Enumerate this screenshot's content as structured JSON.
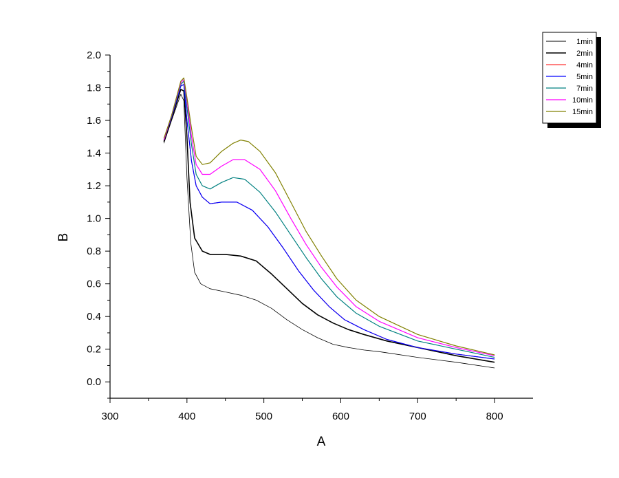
{
  "chart_data": {
    "type": "line",
    "title": "",
    "xlabel": "A",
    "ylabel": "B",
    "xlim": [
      300,
      850
    ],
    "ylim": [
      -0.1,
      2.0
    ],
    "x_ticks": [
      300,
      400,
      500,
      600,
      700,
      800
    ],
    "y_ticks": [
      0.0,
      0.2,
      0.4,
      0.6,
      0.8,
      1.0,
      1.2,
      1.4,
      1.6,
      1.8,
      2.0
    ],
    "x_tick_labels": [
      "300",
      "400",
      "500",
      "600",
      "700",
      "800"
    ],
    "y_tick_labels": [
      "0.0",
      "0.2",
      "0.4",
      "0.6",
      "0.8",
      "1.0",
      "1.2",
      "1.4",
      "1.6",
      "1.8",
      "2.0"
    ],
    "grid": false,
    "legend_position": "top-right",
    "series": [
      {
        "name": "1min",
        "color": "#000000",
        "width": 0.8,
        "points": [
          [
            370,
            1.46
          ],
          [
            380,
            1.6
          ],
          [
            392,
            1.76
          ],
          [
            396,
            1.72
          ],
          [
            400,
            1.25
          ],
          [
            405,
            0.85
          ],
          [
            410,
            0.67
          ],
          [
            418,
            0.6
          ],
          [
            430,
            0.57
          ],
          [
            450,
            0.55
          ],
          [
            470,
            0.53
          ],
          [
            490,
            0.5
          ],
          [
            510,
            0.45
          ],
          [
            530,
            0.38
          ],
          [
            550,
            0.32
          ],
          [
            570,
            0.27
          ],
          [
            590,
            0.23
          ],
          [
            610,
            0.21
          ],
          [
            630,
            0.195
          ],
          [
            650,
            0.185
          ],
          [
            700,
            0.15
          ],
          [
            750,
            0.12
          ],
          [
            800,
            0.085
          ]
        ]
      },
      {
        "name": "2min",
        "color": "#000000",
        "width": 1.6,
        "points": [
          [
            370,
            1.47
          ],
          [
            380,
            1.61
          ],
          [
            392,
            1.79
          ],
          [
            396,
            1.78
          ],
          [
            400,
            1.5
          ],
          [
            404,
            1.1
          ],
          [
            410,
            0.88
          ],
          [
            420,
            0.8
          ],
          [
            430,
            0.78
          ],
          [
            450,
            0.78
          ],
          [
            470,
            0.77
          ],
          [
            490,
            0.74
          ],
          [
            510,
            0.66
          ],
          [
            530,
            0.57
          ],
          [
            550,
            0.48
          ],
          [
            570,
            0.41
          ],
          [
            590,
            0.36
          ],
          [
            610,
            0.32
          ],
          [
            630,
            0.29
          ],
          [
            660,
            0.25
          ],
          [
            700,
            0.21
          ],
          [
            750,
            0.16
          ],
          [
            800,
            0.12
          ]
        ]
      },
      {
        "name": "4min",
        "color": "#ff0000",
        "width": 1.0,
        "points": [
          [
            370,
            1.48
          ],
          [
            380,
            1.62
          ],
          [
            392,
            1.81
          ],
          [
            396,
            1.82
          ],
          [
            400,
            1.6
          ],
          [
            406,
            1.35
          ],
          [
            412,
            1.2
          ],
          [
            420,
            1.13
          ],
          [
            430,
            1.09
          ],
          [
            445,
            1.1
          ],
          [
            465,
            1.1
          ],
          [
            485,
            1.05
          ],
          [
            505,
            0.95
          ],
          [
            525,
            0.82
          ],
          [
            545,
            0.68
          ],
          [
            565,
            0.56
          ],
          [
            585,
            0.46
          ],
          [
            605,
            0.38
          ],
          [
            630,
            0.32
          ],
          [
            660,
            0.26
          ],
          [
            700,
            0.21
          ],
          [
            750,
            0.17
          ],
          [
            800,
            0.14
          ]
        ]
      },
      {
        "name": "5min",
        "color": "#0000ff",
        "width": 1.2,
        "points": [
          [
            370,
            1.48
          ],
          [
            380,
            1.62
          ],
          [
            392,
            1.81
          ],
          [
            396,
            1.82
          ],
          [
            400,
            1.6
          ],
          [
            406,
            1.35
          ],
          [
            412,
            1.2
          ],
          [
            420,
            1.13
          ],
          [
            430,
            1.09
          ],
          [
            445,
            1.1
          ],
          [
            465,
            1.1
          ],
          [
            485,
            1.05
          ],
          [
            505,
            0.95
          ],
          [
            525,
            0.82
          ],
          [
            545,
            0.68
          ],
          [
            565,
            0.56
          ],
          [
            585,
            0.46
          ],
          [
            605,
            0.38
          ],
          [
            630,
            0.32
          ],
          [
            660,
            0.26
          ],
          [
            700,
            0.21
          ],
          [
            750,
            0.17
          ],
          [
            800,
            0.14
          ]
        ]
      },
      {
        "name": "7min",
        "color": "#008080",
        "width": 1.2,
        "points": [
          [
            370,
            1.48
          ],
          [
            380,
            1.63
          ],
          [
            392,
            1.82
          ],
          [
            396,
            1.84
          ],
          [
            400,
            1.68
          ],
          [
            406,
            1.45
          ],
          [
            412,
            1.27
          ],
          [
            420,
            1.2
          ],
          [
            430,
            1.18
          ],
          [
            445,
            1.22
          ],
          [
            460,
            1.25
          ],
          [
            475,
            1.24
          ],
          [
            495,
            1.16
          ],
          [
            515,
            1.04
          ],
          [
            535,
            0.9
          ],
          [
            555,
            0.76
          ],
          [
            575,
            0.63
          ],
          [
            595,
            0.52
          ],
          [
            620,
            0.42
          ],
          [
            650,
            0.34
          ],
          [
            700,
            0.25
          ],
          [
            750,
            0.2
          ],
          [
            800,
            0.15
          ]
        ]
      },
      {
        "name": "10min",
        "color": "#ff00ff",
        "width": 1.2,
        "points": [
          [
            370,
            1.48
          ],
          [
            380,
            1.63
          ],
          [
            392,
            1.83
          ],
          [
            396,
            1.85
          ],
          [
            400,
            1.72
          ],
          [
            406,
            1.5
          ],
          [
            412,
            1.33
          ],
          [
            420,
            1.27
          ],
          [
            430,
            1.27
          ],
          [
            445,
            1.32
          ],
          [
            460,
            1.36
          ],
          [
            475,
            1.36
          ],
          [
            495,
            1.3
          ],
          [
            515,
            1.17
          ],
          [
            535,
            1.0
          ],
          [
            555,
            0.84
          ],
          [
            575,
            0.7
          ],
          [
            595,
            0.58
          ],
          [
            620,
            0.46
          ],
          [
            650,
            0.37
          ],
          [
            700,
            0.27
          ],
          [
            750,
            0.21
          ],
          [
            800,
            0.16
          ]
        ]
      },
      {
        "name": "15min",
        "color": "#808000",
        "width": 1.2,
        "points": [
          [
            370,
            1.49
          ],
          [
            380,
            1.63
          ],
          [
            392,
            1.84
          ],
          [
            396,
            1.86
          ],
          [
            400,
            1.74
          ],
          [
            406,
            1.55
          ],
          [
            412,
            1.38
          ],
          [
            420,
            1.33
          ],
          [
            430,
            1.34
          ],
          [
            445,
            1.41
          ],
          [
            460,
            1.46
          ],
          [
            470,
            1.48
          ],
          [
            480,
            1.47
          ],
          [
            495,
            1.41
          ],
          [
            515,
            1.28
          ],
          [
            535,
            1.1
          ],
          [
            555,
            0.92
          ],
          [
            575,
            0.77
          ],
          [
            595,
            0.63
          ],
          [
            620,
            0.5
          ],
          [
            650,
            0.4
          ],
          [
            700,
            0.29
          ],
          [
            750,
            0.22
          ],
          [
            800,
            0.165
          ]
        ]
      }
    ]
  }
}
